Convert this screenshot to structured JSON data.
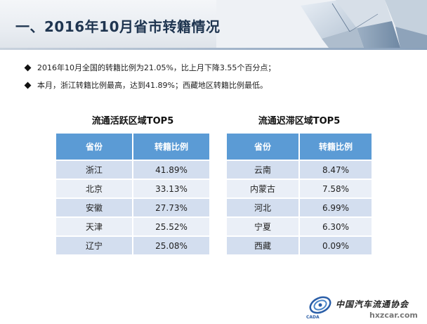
{
  "header": {
    "title": "一、2016年10月省市转籍情况"
  },
  "bullets": [
    "2016年10月全国的转籍比例为21.05%，比上月下降3.55个百分点；",
    "本月，浙江转籍比例最高，达到41.89%；西藏地区转籍比例最低。"
  ],
  "tables": {
    "active": {
      "title": "流通活跃区域TOP5",
      "headers": [
        "省份",
        "转籍比例"
      ],
      "rows": [
        [
          "浙江",
          "41.89%"
        ],
        [
          "北京",
          "33.13%"
        ],
        [
          "安徽",
          "27.73%"
        ],
        [
          "天津",
          "25.52%"
        ],
        [
          "辽宁",
          "25.08%"
        ]
      ]
    },
    "stagnant": {
      "title": "流通迟滞区域TOP5",
      "headers": [
        "省份",
        "转籍比例"
      ],
      "rows": [
        [
          "云南",
          "8.47%"
        ],
        [
          "内蒙古",
          "7.58%"
        ],
        [
          "河北",
          "6.99%"
        ],
        [
          "宁夏",
          "6.30%"
        ],
        [
          "西藏",
          "0.09%"
        ]
      ]
    }
  },
  "footer": {
    "logo_text": "中国汽车流通协会",
    "logo_abbr": "CADA",
    "watermark": "hxzcar.com"
  },
  "colors": {
    "table_header": "#5b9bd5",
    "row_odd": "#d3deef",
    "row_even": "#eaeff7",
    "title": "#1f3550"
  }
}
